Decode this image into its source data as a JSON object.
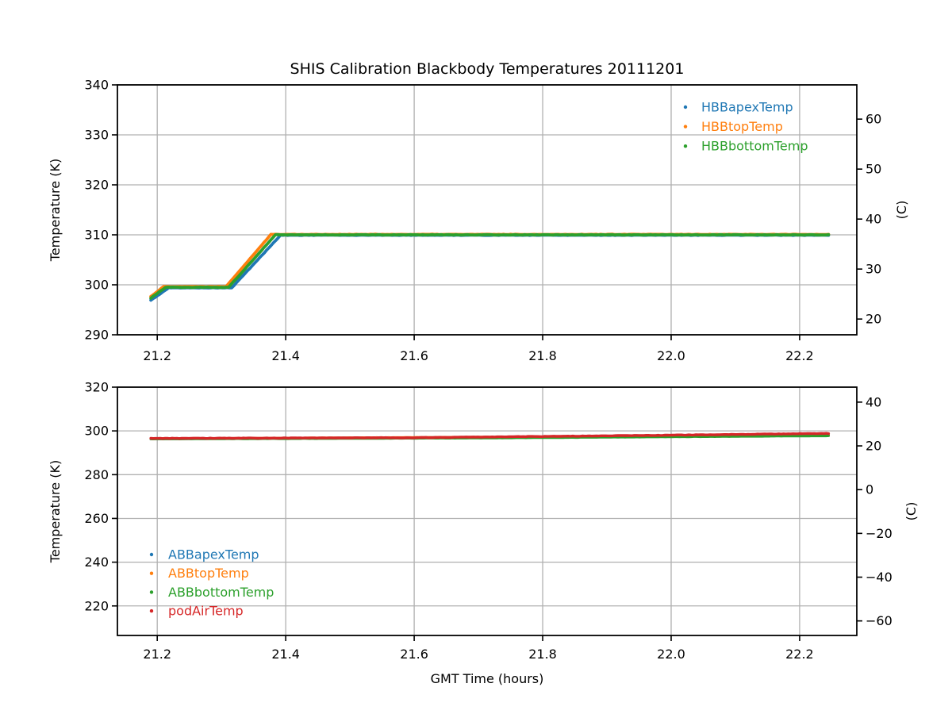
{
  "figure_title": "SHIS Calibration Blackbody Temperatures 20111201",
  "colors": {
    "blue": "#1f77b4",
    "orange": "#ff7f0e",
    "green": "#2ca02c",
    "red": "#d62728",
    "grid": "#b0b0b0",
    "axis": "#000000"
  },
  "chart_data": [
    {
      "type": "scatter",
      "position": "top",
      "xlabel": "",
      "ylabel": "Temperature (K)",
      "right_ylabel": "(C)",
      "xlim": [
        21.138,
        22.289
      ],
      "ylim": [
        290,
        340
      ],
      "xticks": [
        21.2,
        21.4,
        21.6,
        21.8,
        22.0,
        22.2
      ],
      "xtick_labels": [
        "21.2",
        "21.4",
        "21.6",
        "21.8",
        "22.0",
        "22.2"
      ],
      "yticks": [
        290,
        300,
        310,
        320,
        330,
        340
      ],
      "ytick_labels": [
        "290",
        "300",
        "310",
        "320",
        "330",
        "340"
      ],
      "right_yticks_celsius": [
        20,
        30,
        40,
        50,
        60
      ],
      "right_ytick_labels": [
        "20",
        "30",
        "40",
        "50",
        "60"
      ],
      "celsius_to_kelvin_offset": 273.15,
      "grid": true,
      "legend_position": "upper right",
      "series": [
        {
          "name": "HBBapexTemp",
          "color": "#1f77b4",
          "marker": "dot",
          "points": [
            [
              21.19,
              296.9
            ],
            [
              21.218,
              299.4
            ],
            [
              21.316,
              299.4
            ],
            [
              21.392,
              309.93
            ],
            [
              22.245,
              309.93
            ]
          ]
        },
        {
          "name": "HBBtopTemp",
          "color": "#ff7f0e",
          "marker": "dot",
          "points": [
            [
              21.19,
              297.65
            ],
            [
              21.21,
              299.65
            ],
            [
              21.307,
              299.65
            ],
            [
              21.377,
              310.08
            ],
            [
              22.245,
              310.08
            ]
          ]
        },
        {
          "name": "HBBbottomTemp",
          "color": "#2ca02c",
          "marker": "dot",
          "points": [
            [
              21.19,
              297.35
            ],
            [
              21.213,
              299.5
            ],
            [
              21.311,
              299.5
            ],
            [
              21.384,
              310.0
            ],
            [
              22.245,
              310.0
            ]
          ]
        }
      ]
    },
    {
      "type": "scatter",
      "position": "bottom",
      "xlabel": "GMT Time (hours)",
      "ylabel": "Temperature (K)",
      "right_ylabel": "(C)",
      "xlim": [
        21.138,
        22.289
      ],
      "ylim": [
        206.5,
        320
      ],
      "xticks": [
        21.2,
        21.4,
        21.6,
        21.8,
        22.0,
        22.2
      ],
      "xtick_labels": [
        "21.2",
        "21.4",
        "21.6",
        "21.8",
        "22.0",
        "22.2"
      ],
      "yticks": [
        220,
        240,
        260,
        280,
        300,
        320
      ],
      "ytick_labels": [
        "220",
        "240",
        "260",
        "280",
        "300",
        "320"
      ],
      "right_yticks_celsius": [
        40,
        20,
        0,
        -20,
        -40,
        -60
      ],
      "right_ytick_labels": [
        "40",
        "20",
        "0",
        "−20",
        "−40",
        "−60"
      ],
      "celsius_to_kelvin_offset": 273.15,
      "grid": true,
      "legend_position": "lower left",
      "series": [
        {
          "name": "ABBapexTemp",
          "color": "#1f77b4",
          "marker": "dot",
          "points": [
            [
              21.19,
              296.35
            ],
            [
              22.245,
              297.9
            ]
          ]
        },
        {
          "name": "ABBtopTemp",
          "color": "#ff7f0e",
          "marker": "dot",
          "points": [
            [
              21.19,
              296.42
            ],
            [
              22.245,
              297.97
            ]
          ]
        },
        {
          "name": "ABBbottomTemp",
          "color": "#2ca02c",
          "marker": "dot",
          "points": [
            [
              21.19,
              296.3
            ],
            [
              21.7,
              296.72
            ],
            [
              22.245,
              297.75
            ]
          ]
        },
        {
          "name": "podAirTemp",
          "color": "#d62728",
          "marker": "dot",
          "points": [
            [
              21.19,
              296.55
            ],
            [
              21.6,
              296.9
            ],
            [
              21.95,
              297.9
            ],
            [
              22.245,
              298.85
            ]
          ]
        }
      ]
    }
  ]
}
